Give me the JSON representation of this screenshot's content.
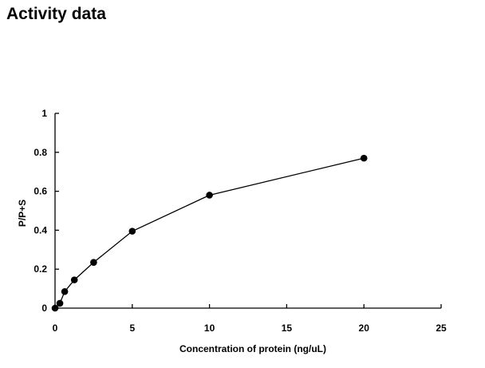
{
  "page": {
    "title": "Activity data"
  },
  "chart_data": {
    "type": "scatter",
    "mode": "lines+markers",
    "title": "",
    "xlabel": "Concentration of protein (ng/uL)",
    "ylabel": "P/P+S",
    "xlim": [
      0,
      25
    ],
    "ylim": [
      0,
      1
    ],
    "xticks": [
      0,
      5,
      10,
      15,
      20,
      25
    ],
    "yticks": [
      0,
      0.2,
      0.4,
      0.6,
      0.8,
      1
    ],
    "xtick_labels": [
      "0",
      "5",
      "10",
      "15",
      "20",
      "25"
    ],
    "ytick_labels": [
      "0",
      "0.2",
      "0.4",
      "0.6",
      "0.8",
      "1"
    ],
    "grid": false,
    "legend": "none",
    "series": [
      {
        "x": [
          0,
          0.3125,
          0.625,
          1.25,
          2.5,
          5,
          10,
          20
        ],
        "y": [
          0.0,
          0.025,
          0.085,
          0.145,
          0.235,
          0.395,
          0.58,
          0.77
        ],
        "color": "#000000"
      }
    ]
  }
}
